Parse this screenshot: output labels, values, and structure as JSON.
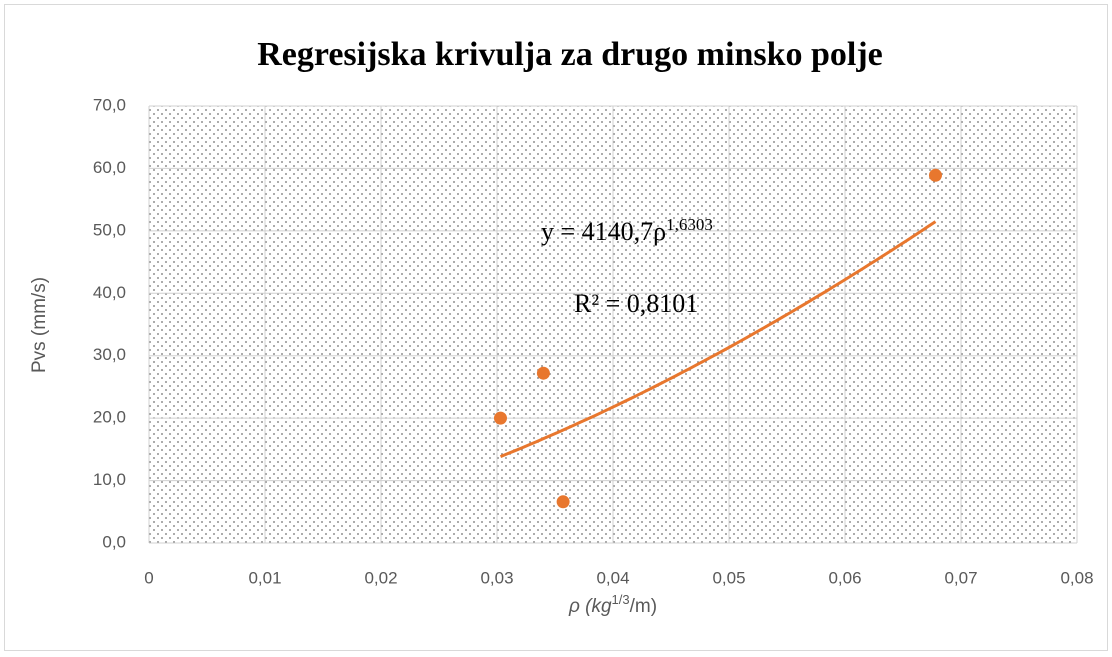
{
  "chart_data": {
    "type": "scatter",
    "title": "Regresijska krivulja za drugo minsko polje",
    "ylabel": "Pvs (mm/s)",
    "xlabel": {
      "text": "ρ (kg",
      "sup": "1/3",
      "rest": "/m)"
    },
    "series": [
      {
        "name": "Pvs",
        "color": "#e8772e",
        "x": [
          0.0303,
          0.034,
          0.0357,
          0.0678
        ],
        "values": [
          20.0,
          27.2,
          6.6,
          58.9
        ]
      }
    ],
    "trendline": {
      "type": "power",
      "color": "#e8772e",
      "lhs": "y = ",
      "coefficient": {
        "value": 4140.7,
        "label": "4140,7"
      },
      "variable": "ρ",
      "exponent": {
        "value": 1.6303,
        "label": "1,6303"
      },
      "r_squared": {
        "value": 0.8101,
        "label": "R² = 0,8101"
      }
    },
    "xlim": [
      0,
      0.08
    ],
    "xticks": [
      0,
      {
        "value": 0.01,
        "label": "0,01"
      },
      {
        "value": 0.02,
        "label": "0,02"
      },
      {
        "value": 0.03,
        "label": "0,03"
      },
      {
        "value": 0.04,
        "label": "0,04"
      },
      {
        "value": 0.05,
        "label": "0,05"
      },
      {
        "value": 0.06,
        "label": "0,06"
      },
      {
        "value": 0.07,
        "label": "0,07"
      },
      {
        "value": 0.08,
        "label": "0,08"
      }
    ],
    "ylim": [
      0,
      70
    ],
    "yticks": [
      {
        "value": 0,
        "label": "0,0"
      },
      {
        "value": 10,
        "label": "10,0"
      },
      {
        "value": 20,
        "label": "20,0"
      },
      {
        "value": 30,
        "label": "30,0"
      },
      {
        "value": 40,
        "label": "40,0"
      },
      {
        "value": 50,
        "label": "50,0"
      },
      {
        "value": 60,
        "label": "60,0"
      },
      {
        "value": 70,
        "label": "70,0"
      }
    ],
    "grid": true
  }
}
